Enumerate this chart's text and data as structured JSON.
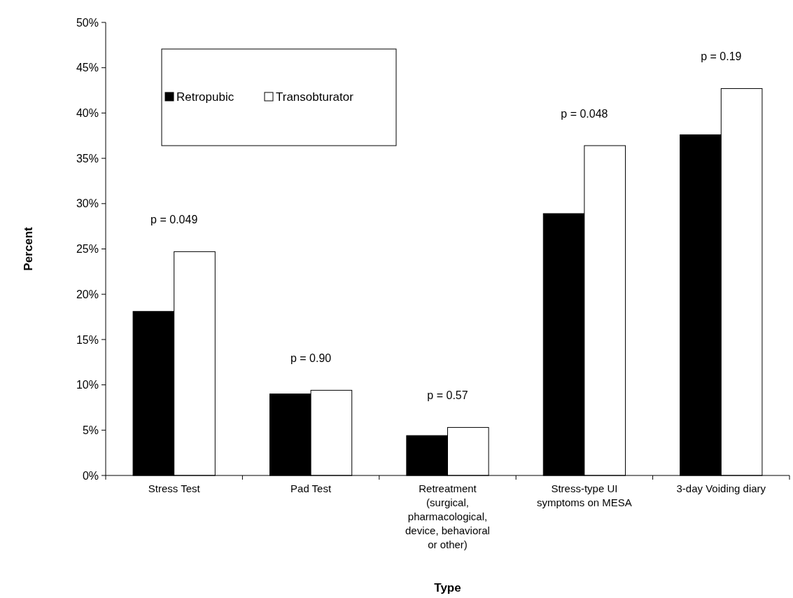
{
  "chart_data": {
    "type": "bar",
    "xlabel": "Type",
    "ylabel": "Percent",
    "categories": [
      "Stress Test",
      "Pad Test",
      "Retreatment (surgical, pharmacological, device, behavioral or other)",
      "Stress-type UI symptoms on MESA",
      "3-day Voiding diary"
    ],
    "series": [
      {
        "name": "Retropubic",
        "color": "#000000",
        "values": [
          18.1,
          9.0,
          4.4,
          28.9,
          37.6
        ]
      },
      {
        "name": "Transobturator",
        "color": "#ffffff",
        "values": [
          24.7,
          9.4,
          5.3,
          36.4,
          42.7
        ]
      }
    ],
    "ylim": [
      0,
      50
    ],
    "yticks": [
      {
        "value": 0,
        "label": "0%"
      },
      {
        "value": 5,
        "label": "5%"
      },
      {
        "value": 10,
        "label": "10%"
      },
      {
        "value": 15,
        "label": "15%"
      },
      {
        "value": 20,
        "label": "20%"
      },
      {
        "value": 25,
        "label": "25%"
      },
      {
        "value": 30,
        "label": "30%"
      },
      {
        "value": 35,
        "label": "35%"
      },
      {
        "value": 40,
        "label": "40%"
      },
      {
        "value": 45,
        "label": "45%"
      },
      {
        "value": 50,
        "label": "50%"
      }
    ],
    "annotations": [
      "p = 0.049",
      "p = 0.90",
      "p = 0.57",
      "p = 0.048",
      "p = 0.19"
    ],
    "legend": "top left",
    "grid": false
  }
}
